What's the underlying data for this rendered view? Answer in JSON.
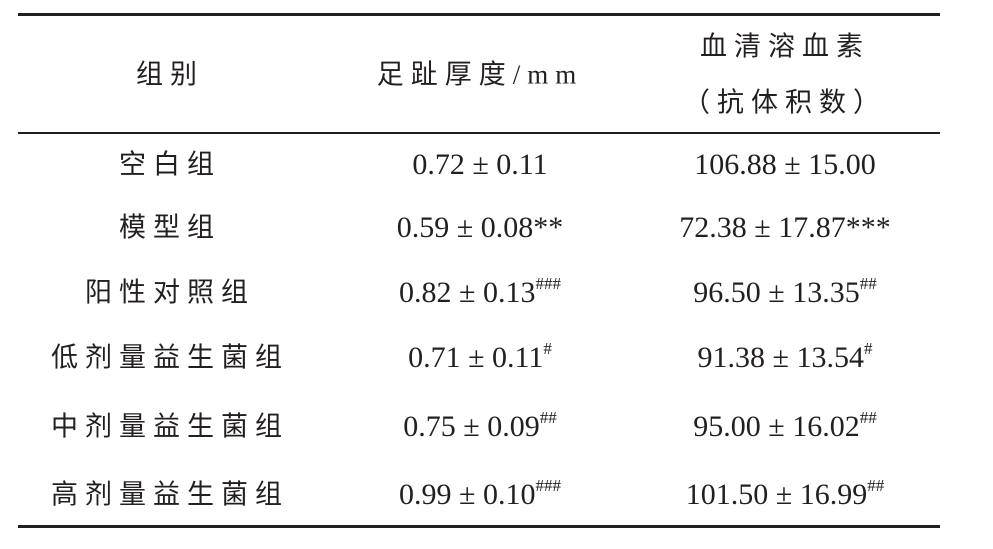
{
  "table": {
    "headers": [
      [
        "组别"
      ],
      [
        "足趾厚度/mm"
      ],
      [
        "血清溶血素",
        "（抗体积数）"
      ]
    ],
    "rows": [
      [
        {
          "text": "空白组"
        },
        {
          "text": "0.72 ± 0.11"
        },
        {
          "text": "106.88 ± 15.00"
        }
      ],
      [
        {
          "text": "模型组"
        },
        {
          "text": "0.59 ± 0.08**"
        },
        {
          "text": "72.38 ± 17.87***"
        }
      ],
      [
        {
          "text": "阳性对照组"
        },
        {
          "text": "0.82 ± 0.13",
          "sup": "###"
        },
        {
          "text": "96.50 ± 13.35",
          "sup": "##"
        }
      ],
      [
        {
          "text": "低剂量益生菌组"
        },
        {
          "text": "0.71 ± 0.11",
          "sup": "#"
        },
        {
          "text": "91.38 ± 13.54",
          "sup": "#"
        }
      ],
      [
        {
          "text": "中剂量益生菌组"
        },
        {
          "text": "0.75 ± 0.09",
          "sup": "##"
        },
        {
          "text": "95.00 ± 16.02",
          "sup": "##"
        }
      ],
      [
        {
          "text": "高剂量益生菌组"
        },
        {
          "text": "0.99 ± 0.10",
          "sup": "###"
        },
        {
          "text": "101.50 ± 16.99",
          "sup": "##"
        }
      ]
    ]
  }
}
